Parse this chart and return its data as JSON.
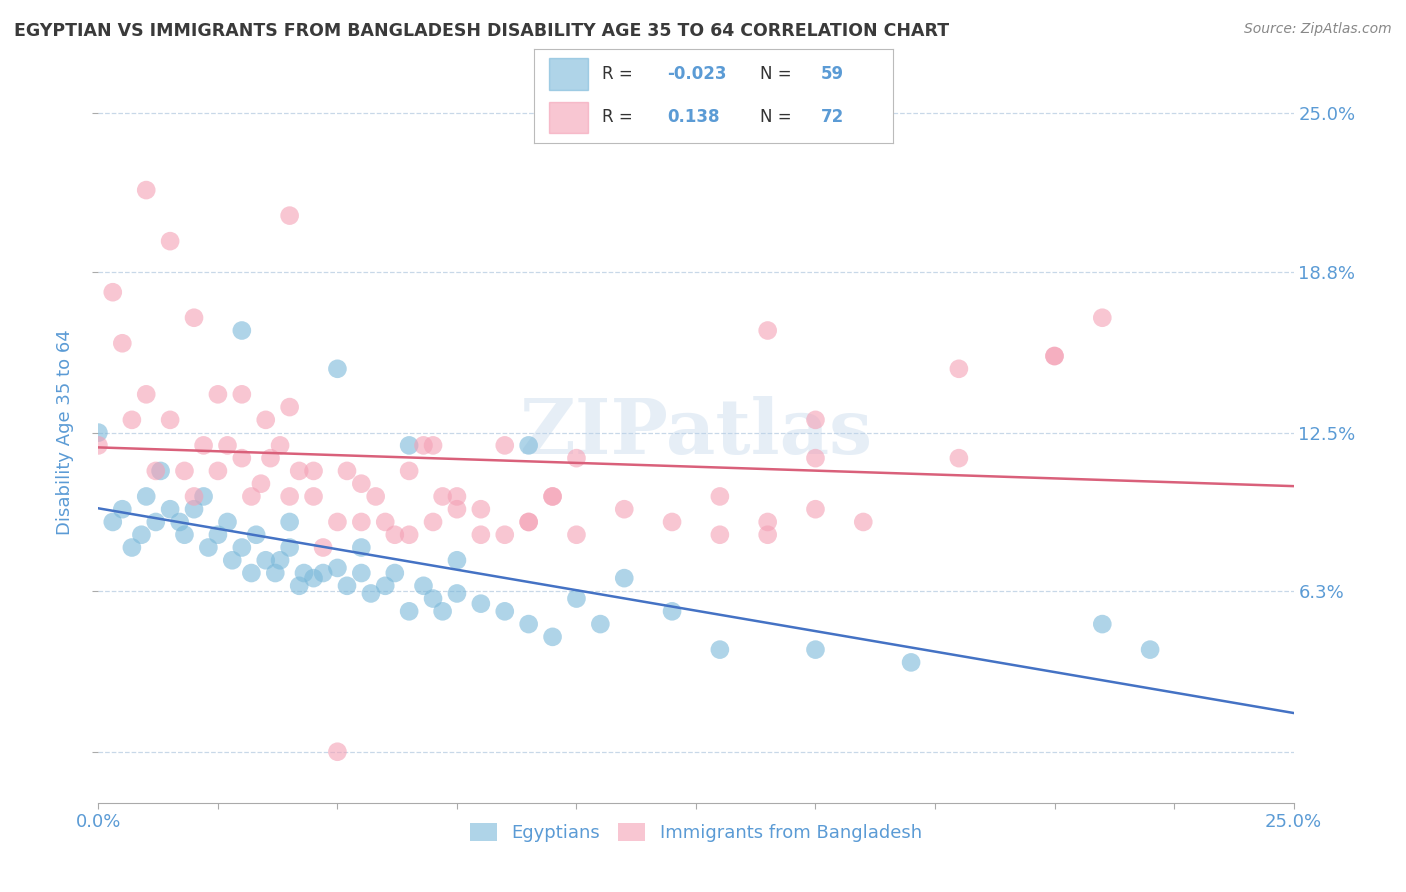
{
  "title": "EGYPTIAN VS IMMIGRANTS FROM BANGLADESH DISABILITY AGE 35 TO 64 CORRELATION CHART",
  "source": "Source: ZipAtlas.com",
  "ylabel": "Disability Age 35 to 64",
  "xlim": [
    0.0,
    0.25
  ],
  "ylim": [
    -0.02,
    0.27
  ],
  "ytick_positions": [
    0.0,
    0.063,
    0.125,
    0.188,
    0.25
  ],
  "ytick_labels": [
    "",
    "6.3%",
    "12.5%",
    "18.8%",
    "25.0%"
  ],
  "xtick_positions": [
    0.0,
    0.025,
    0.05,
    0.075,
    0.1,
    0.125,
    0.15,
    0.175,
    0.2,
    0.225,
    0.25
  ],
  "xtick_labels": [
    "0.0%",
    "",
    "",
    "",
    "",
    "",
    "",
    "",
    "",
    "",
    "25.0%"
  ],
  "blue_color": "#7ab8d9",
  "pink_color": "#f4a0b5",
  "blue_line_color": "#4472c4",
  "pink_line_color": "#d9607a",
  "title_color": "#3a3a3a",
  "label_color": "#5b9bd5",
  "grid_color": "#c8d8e8",
  "watermark_color": "#b8d0e8",
  "background_color": "#ffffff",
  "blue_scatter_x": [
    0.0,
    0.003,
    0.005,
    0.007,
    0.009,
    0.01,
    0.012,
    0.013,
    0.015,
    0.017,
    0.018,
    0.02,
    0.022,
    0.023,
    0.025,
    0.027,
    0.028,
    0.03,
    0.032,
    0.033,
    0.035,
    0.037,
    0.038,
    0.04,
    0.042,
    0.043,
    0.045,
    0.047,
    0.05,
    0.052,
    0.055,
    0.057,
    0.06,
    0.062,
    0.065,
    0.068,
    0.07,
    0.072,
    0.075,
    0.08,
    0.085,
    0.09,
    0.095,
    0.1,
    0.105,
    0.11,
    0.12,
    0.13,
    0.15,
    0.17,
    0.21,
    0.22,
    0.03,
    0.04,
    0.05,
    0.055,
    0.065,
    0.075,
    0.09
  ],
  "blue_scatter_y": [
    0.125,
    0.09,
    0.095,
    0.08,
    0.085,
    0.1,
    0.09,
    0.11,
    0.095,
    0.09,
    0.085,
    0.095,
    0.1,
    0.08,
    0.085,
    0.09,
    0.075,
    0.08,
    0.07,
    0.085,
    0.075,
    0.07,
    0.075,
    0.08,
    0.065,
    0.07,
    0.068,
    0.07,
    0.072,
    0.065,
    0.07,
    0.062,
    0.065,
    0.07,
    0.055,
    0.065,
    0.06,
    0.055,
    0.062,
    0.058,
    0.055,
    0.05,
    0.045,
    0.06,
    0.05,
    0.068,
    0.055,
    0.04,
    0.04,
    0.035,
    0.05,
    0.04,
    0.165,
    0.09,
    0.15,
    0.08,
    0.12,
    0.075,
    0.12
  ],
  "pink_scatter_x": [
    0.0,
    0.003,
    0.005,
    0.007,
    0.01,
    0.012,
    0.015,
    0.018,
    0.02,
    0.022,
    0.025,
    0.027,
    0.03,
    0.032,
    0.034,
    0.036,
    0.038,
    0.04,
    0.042,
    0.045,
    0.047,
    0.05,
    0.052,
    0.055,
    0.058,
    0.06,
    0.062,
    0.065,
    0.068,
    0.07,
    0.072,
    0.075,
    0.08,
    0.085,
    0.09,
    0.095,
    0.1,
    0.11,
    0.12,
    0.13,
    0.14,
    0.15,
    0.16,
    0.18,
    0.2,
    0.21,
    0.01,
    0.015,
    0.02,
    0.025,
    0.03,
    0.035,
    0.04,
    0.045,
    0.055,
    0.065,
    0.07,
    0.075,
    0.08,
    0.085,
    0.09,
    0.095,
    0.1,
    0.13,
    0.14,
    0.14,
    0.15,
    0.15,
    0.18,
    0.2,
    0.04,
    0.05
  ],
  "pink_scatter_y": [
    0.12,
    0.18,
    0.16,
    0.13,
    0.14,
    0.11,
    0.13,
    0.11,
    0.1,
    0.12,
    0.11,
    0.12,
    0.115,
    0.1,
    0.105,
    0.115,
    0.12,
    0.1,
    0.11,
    0.1,
    0.08,
    0.09,
    0.11,
    0.09,
    0.1,
    0.09,
    0.085,
    0.085,
    0.12,
    0.09,
    0.1,
    0.095,
    0.095,
    0.085,
    0.09,
    0.1,
    0.085,
    0.095,
    0.09,
    0.085,
    0.09,
    0.095,
    0.09,
    0.115,
    0.155,
    0.17,
    0.22,
    0.2,
    0.17,
    0.14,
    0.14,
    0.13,
    0.135,
    0.11,
    0.105,
    0.11,
    0.12,
    0.1,
    0.085,
    0.12,
    0.09,
    0.1,
    0.115,
    0.1,
    0.085,
    0.165,
    0.13,
    0.115,
    0.15,
    0.155,
    0.21,
    0.0
  ]
}
